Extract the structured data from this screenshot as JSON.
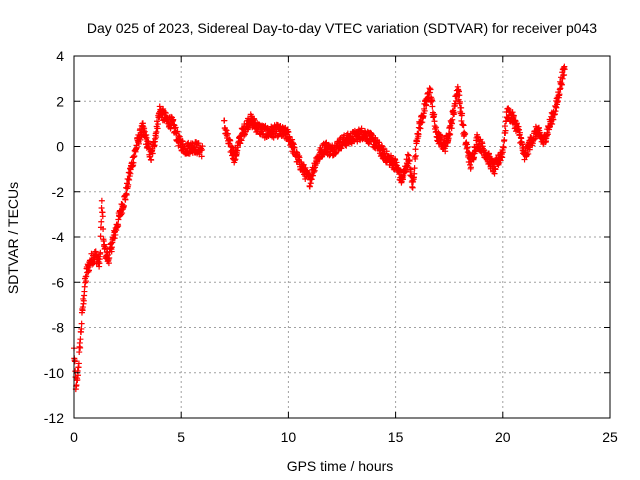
{
  "chart_data": {
    "type": "scatter",
    "title": "Day 025 of 2023, Sidereal Day-to-day VTEC variation (SDTVAR) for receiver p043",
    "xlabel": "GPS time / hours",
    "ylabel": "SDTVAR / TECUs",
    "xlim": [
      0,
      25
    ],
    "ylim": [
      -12,
      4
    ],
    "xticks": [
      0,
      5,
      10,
      15,
      20,
      25
    ],
    "yticks": [
      -12,
      -10,
      -8,
      -6,
      -4,
      -2,
      0,
      2,
      4
    ],
    "grid": true,
    "marker": "+",
    "series": [
      {
        "name": "SDTVAR",
        "color": "#ff0000",
        "anchors": [
          [
            0.0,
            -9.0
          ],
          [
            0.1,
            -10.8
          ],
          [
            0.2,
            -9.8
          ],
          [
            0.3,
            -8.5
          ],
          [
            0.4,
            -7.2
          ],
          [
            0.5,
            -6.2
          ],
          [
            0.6,
            -5.5
          ],
          [
            0.8,
            -5.0
          ],
          [
            1.0,
            -4.8
          ],
          [
            1.2,
            -5.2
          ],
          [
            1.3,
            -2.5
          ],
          [
            1.4,
            -4.5
          ],
          [
            1.6,
            -5.0
          ],
          [
            1.8,
            -4.2
          ],
          [
            2.0,
            -3.5
          ],
          [
            2.2,
            -2.8
          ],
          [
            2.4,
            -2.2
          ],
          [
            2.6,
            -1.2
          ],
          [
            2.8,
            -0.4
          ],
          [
            3.0,
            0.3
          ],
          [
            3.2,
            0.8
          ],
          [
            3.4,
            0.2
          ],
          [
            3.6,
            -0.5
          ],
          [
            3.8,
            0.5
          ],
          [
            4.0,
            1.6
          ],
          [
            4.3,
            1.2
          ],
          [
            4.6,
            1.0
          ],
          [
            4.9,
            0.2
          ],
          [
            5.2,
            -0.1
          ],
          [
            5.6,
            0.0
          ],
          [
            6.0,
            -0.2
          ],
          [
            7.0,
            1.0
          ],
          [
            7.2,
            0.2
          ],
          [
            7.5,
            -0.5
          ],
          [
            7.8,
            0.5
          ],
          [
            8.2,
            1.2
          ],
          [
            8.6,
            0.8
          ],
          [
            9.0,
            0.6
          ],
          [
            9.5,
            0.7
          ],
          [
            10.0,
            0.5
          ],
          [
            10.4,
            -0.5
          ],
          [
            10.8,
            -1.2
          ],
          [
            11.0,
            -1.5
          ],
          [
            11.3,
            -0.6
          ],
          [
            11.7,
            0.0
          ],
          [
            12.0,
            -0.2
          ],
          [
            12.5,
            0.2
          ],
          [
            13.0,
            0.4
          ],
          [
            13.5,
            0.6
          ],
          [
            14.0,
            0.2
          ],
          [
            14.5,
            -0.4
          ],
          [
            15.0,
            -0.8
          ],
          [
            15.3,
            -1.5
          ],
          [
            15.6,
            -0.5
          ],
          [
            15.8,
            -1.8
          ],
          [
            16.0,
            0.5
          ],
          [
            16.3,
            1.5
          ],
          [
            16.6,
            2.5
          ],
          [
            16.9,
            0.5
          ],
          [
            17.3,
            0.0
          ],
          [
            17.6,
            1.0
          ],
          [
            17.9,
            2.6
          ],
          [
            18.2,
            0.5
          ],
          [
            18.5,
            -0.8
          ],
          [
            18.8,
            0.3
          ],
          [
            19.2,
            -0.3
          ],
          [
            19.6,
            -1.0
          ],
          [
            20.0,
            -0.2
          ],
          [
            20.2,
            1.5
          ],
          [
            20.5,
            1.2
          ],
          [
            20.8,
            0.5
          ],
          [
            21.0,
            -0.5
          ],
          [
            21.3,
            0.2
          ],
          [
            21.6,
            0.7
          ],
          [
            21.9,
            0.2
          ],
          [
            22.2,
            1.0
          ],
          [
            22.5,
            1.8
          ],
          [
            22.7,
            2.8
          ],
          [
            22.9,
            3.5
          ]
        ]
      }
    ]
  }
}
